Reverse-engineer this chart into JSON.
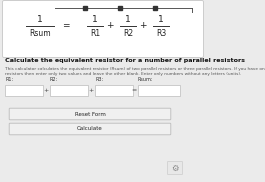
{
  "bg_color": "#ebebeb",
  "formula_box_color": "#ffffff",
  "formula_border_color": "#cccccc",
  "title_text": "Calculate the equivalent resistor for a number of parallel resistors",
  "desc_text": "This calculator calculates the equivalent resistor (Rsum) of two parallel resistors or three parallel resistors. If you have only two\nresistors then enter only two values and leave the other blank. Enter only numbers without any letters (units).",
  "input_labels": [
    "R1:",
    "R2:",
    "R3:",
    "Rsum:"
  ],
  "sep_syms": [
    "+",
    "+",
    "="
  ],
  "button_reset": "Reset Form",
  "button_calc": "Calculate",
  "input_box_color": "#ffffff",
  "input_border_color": "#bbbbbb",
  "button_bg": "#f0f0f0",
  "button_border": "#bbbbbb",
  "formula_fracs": [
    "1\nRsum",
    "1\nR1",
    "1\nR2",
    "1\nR3"
  ],
  "formula_ops": [
    "=",
    "+",
    "+"
  ]
}
